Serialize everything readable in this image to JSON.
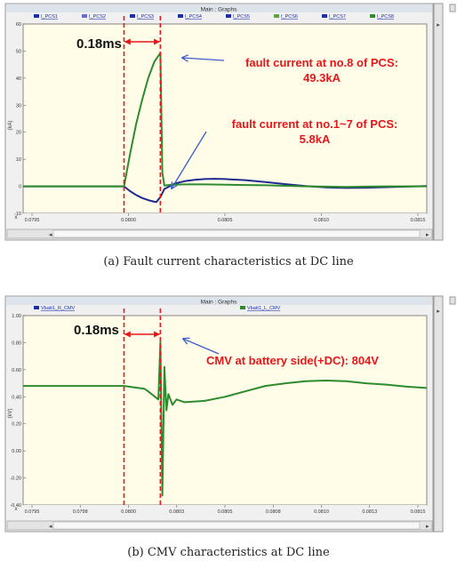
{
  "panels": [
    {
      "window_title": "Main : Graphs",
      "caption": "(a) Fault current characteristics at DC line",
      "colors": {
        "frame": "#9a9a9a",
        "plot_bg": "#fffde8",
        "titlebar": "#dde3ea",
        "annotation": "#e8161b",
        "marker": "#e8161b",
        "arrow": "#3a5fcd"
      }
    },
    {
      "window_title": "Main : Graphs",
      "caption": "(b) CMV characteristics at DC line",
      "colors": {
        "frame": "#9a9a9a",
        "plot_bg": "#fffde8",
        "titlebar": "#dde3ea",
        "annotation": "#e8161b",
        "marker": "#e8161b",
        "arrow": "#3a5fcd"
      }
    }
  ],
  "chart_data": [
    {
      "type": "line",
      "title": "",
      "ylabel": "(kA)",
      "x_axis_symbol": "x",
      "xlim": [
        0.0795,
        0.0815
      ],
      "ylim": [
        -10,
        60
      ],
      "x_ticks": [
        "0.0795",
        "0.0800",
        "0.0805",
        "0.0810",
        "0.0815"
      ],
      "y_ticks": [
        "-10",
        "0",
        "10",
        "20",
        "30",
        "40",
        "50",
        "60"
      ],
      "grid": false,
      "legend": [
        "I_PCS1",
        "I_PCS2",
        "I_PCS3",
        "I_PCS4",
        "I_PCS5",
        "I_PCS6",
        "I_PCS7",
        "I_PCS8"
      ],
      "legend_colors": [
        "#1a2ea8",
        "#6a6ad0",
        "#1a2ea8",
        "#1a2ea8",
        "#1a2ea8",
        "#5aa63c",
        "#1a2ea8",
        "#2e8b2e"
      ],
      "legend_placement": "top",
      "series": [
        {
          "name": "I_PCS1",
          "color": "#1e2a8c",
          "x": [
            0.0795,
            0.08,
            0.08003,
            0.08006,
            0.08009,
            0.08012,
            0.08015,
            0.08016,
            0.08018,
            0.0802,
            0.08025,
            0.0803,
            0.08035,
            0.0804,
            0.08045,
            0.0805,
            0.0806,
            0.0807,
            0.0808,
            0.0809,
            0.081,
            0.0811,
            0.0812,
            0.0813,
            0.0814,
            0.0815
          ],
          "y": [
            0,
            0,
            -1.8,
            -3.2,
            -4.3,
            -5.1,
            -5.7,
            -5.8,
            -4.0,
            -1.0,
            1.0,
            1.9,
            2.4,
            2.7,
            2.8,
            2.7,
            2.3,
            1.6,
            0.8,
            0.1,
            -0.4,
            -0.6,
            -0.5,
            -0.3,
            -0.1,
            0.1
          ]
        },
        {
          "name": "I_PCS8",
          "color": "#2e8b2e",
          "x": [
            0.0795,
            0.08,
            0.08003,
            0.08006,
            0.08009,
            0.08012,
            0.08015,
            0.08018,
            0.08019,
            0.0802,
            0.08022,
            0.08025,
            0.0803,
            0.0804,
            0.0805,
            0.0806,
            0.0807,
            0.0808,
            0.0809,
            0.081,
            0.0811,
            0.0812,
            0.0813,
            0.0814,
            0.0815
          ],
          "y": [
            0,
            0,
            12,
            23,
            32,
            40,
            46,
            49.3,
            5,
            0.3,
            0.5,
            0.6,
            0.7,
            0.7,
            0.6,
            0.5,
            0.4,
            0.2,
            0,
            -0.1,
            -0.2,
            -0.1,
            0,
            0,
            0
          ]
        }
      ],
      "markers": {
        "fault_start": 0.08,
        "fault_end": 0.08018
      },
      "annotations": {
        "interval": "0.18ms",
        "label1_line1": "fault current at no.8 of PCS:",
        "label1_line2": "49.3kA",
        "label2_line1": "fault current at no.1~7 of PCS:",
        "label2_line2": "5.8kA"
      }
    },
    {
      "type": "line",
      "title": "",
      "ylabel": "(kV)",
      "x_axis_symbol": "x",
      "xlim": [
        0.0795,
        0.0815
      ],
      "ylim": [
        -0.4,
        1.0
      ],
      "x_ticks": [
        "0.0795",
        "0.0798",
        "0.0800",
        "0.0803",
        "0.0805",
        "0.0808",
        "0.0810",
        "0.0813",
        "0.0815"
      ],
      "y_ticks": [
        "-0.40",
        "-0.20",
        "0.00",
        "0.20",
        "0.40",
        "0.60",
        "0.80",
        "1.00"
      ],
      "grid": false,
      "legend": [
        "Vbatt1_R_CMV",
        "Vbatt1_L_CMV"
      ],
      "legend_colors": [
        "#1a2ea8",
        "#2e8b2e"
      ],
      "legend_placement": "top",
      "series": [
        {
          "name": "Vbatt1_L_CMV",
          "color": "#2e8b2e",
          "x": [
            0.0795,
            0.0799,
            0.08,
            0.0801,
            0.08012,
            0.08017,
            0.08018,
            0.08019,
            0.0802,
            0.08021,
            0.08022,
            0.08024,
            0.08026,
            0.0803,
            0.0804,
            0.0805,
            0.0806,
            0.0807,
            0.0808,
            0.0809,
            0.081,
            0.0811,
            0.0812,
            0.0813,
            0.0814,
            0.0815
          ],
          "y": [
            0.48,
            0.48,
            0.48,
            0.46,
            0.44,
            0.38,
            0.804,
            -0.33,
            0.62,
            0.3,
            0.42,
            0.34,
            0.38,
            0.36,
            0.37,
            0.4,
            0.44,
            0.48,
            0.5,
            0.515,
            0.52,
            0.515,
            0.5,
            0.49,
            0.475,
            0.465
          ]
        }
      ],
      "markers": {
        "fault_start": 0.08,
        "fault_end": 0.08018
      },
      "annotations": {
        "interval": "0.18ms",
        "label1_line1": "CMV at battery side(+DC): 804V"
      }
    }
  ]
}
